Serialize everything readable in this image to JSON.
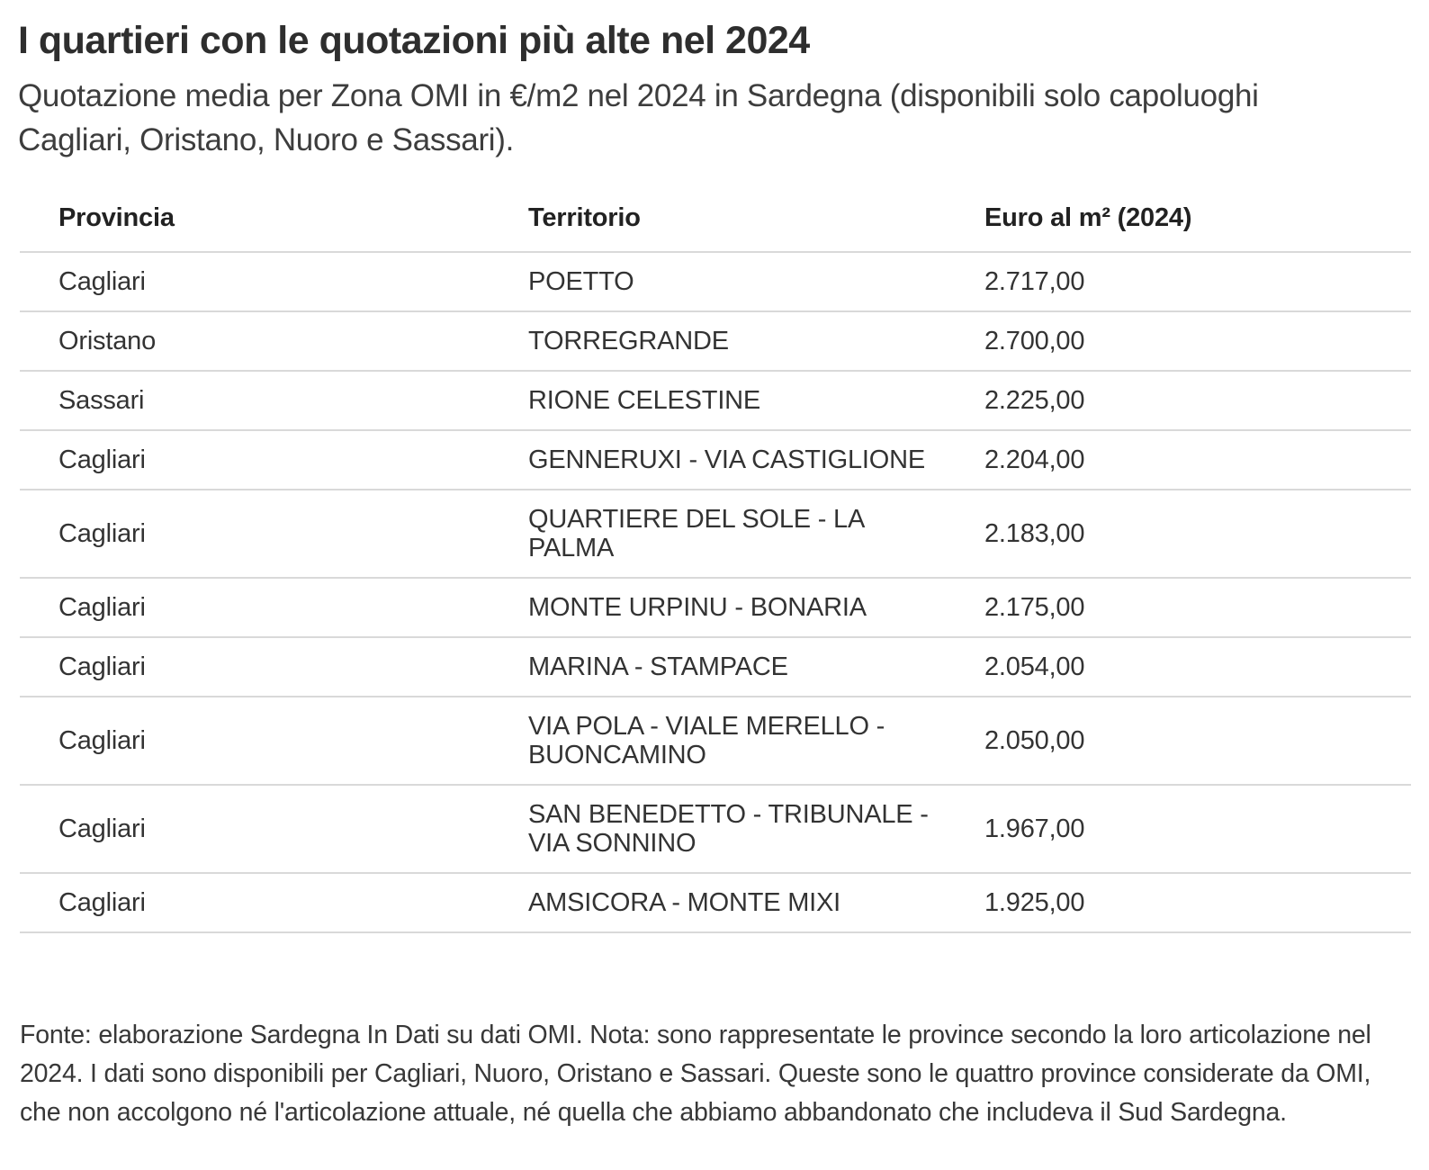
{
  "chart_data": {
    "type": "table",
    "title": "I quartieri con le quotazioni più alte nel 2024",
    "subtitle": "Quotazione media per Zona OMI in €/m2 nel 2024 in Sardegna (disponibili solo capoluoghi Cagliari, Oristano, Nuoro e Sassari).",
    "source_note": "Fonte: elaborazione Sardegna In Dati su dati OMI. Nota: sono rappresentate le province secondo la loro articolazione nel 2024. I dati sono disponibili per Cagliari, Nuoro, Oristano e Sassari. Queste sono le quattro province considerate da OMI, che non accolgono né l'articolazione attuale, né quella che abbiamo abbandonato che includeva il Sud Sardegna.",
    "columns": [
      "Provincia",
      "Territorio",
      "Euro al m² (2024)"
    ],
    "rows": [
      {
        "provincia": "Cagliari",
        "territorio": "POETTO",
        "euro_m2": "2.717,00",
        "euro_m2_value": 2717.0
      },
      {
        "provincia": "Oristano",
        "territorio": "TORREGRANDE",
        "euro_m2": "2.700,00",
        "euro_m2_value": 2700.0
      },
      {
        "provincia": "Sassari",
        "territorio": "RIONE CELESTINE",
        "euro_m2": "2.225,00",
        "euro_m2_value": 2225.0
      },
      {
        "provincia": "Cagliari",
        "territorio": "GENNERUXI - VIA CASTIGLIONE",
        "euro_m2": "2.204,00",
        "euro_m2_value": 2204.0
      },
      {
        "provincia": "Cagliari",
        "territorio": "QUARTIERE DEL SOLE - LA PALMA",
        "euro_m2": "2.183,00",
        "euro_m2_value": 2183.0
      },
      {
        "provincia": "Cagliari",
        "territorio": "MONTE URPINU - BONARIA",
        "euro_m2": "2.175,00",
        "euro_m2_value": 2175.0
      },
      {
        "provincia": "Cagliari",
        "territorio": "MARINA - STAMPACE",
        "euro_m2": "2.054,00",
        "euro_m2_value": 2054.0
      },
      {
        "provincia": "Cagliari",
        "territorio": "VIA POLA - VIALE MERELLO - BUONCAMINO",
        "euro_m2": "2.050,00",
        "euro_m2_value": 2050.0
      },
      {
        "provincia": "Cagliari",
        "territorio": "SAN BENEDETTO - TRIBUNALE - VIA SONNINO",
        "euro_m2": "1.967,00",
        "euro_m2_value": 1967.0
      },
      {
        "provincia": "Cagliari",
        "territorio": "AMSICORA - MONTE MIXI",
        "euro_m2": "1.925,00",
        "euro_m2_value": 1925.0
      }
    ],
    "layout": {
      "legend": "none",
      "grid": "horizontal-row-dividers"
    }
  },
  "colors": {
    "background": "#ffffff",
    "heading_text": "#2e2e2e",
    "body_text": "#333333",
    "divider": "#d9d9d9"
  }
}
